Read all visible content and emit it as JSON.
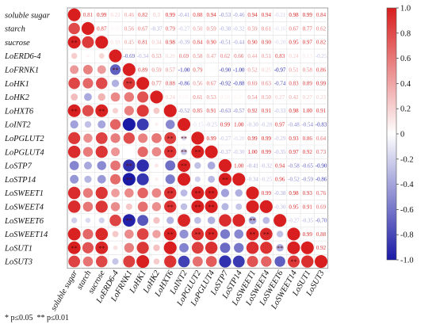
{
  "chart_data": {
    "type": "heatmap",
    "subtype": "correlation-matrix",
    "labels": [
      "soluble sugar",
      "starch",
      "sucrose",
      "LoERD6-4",
      "LoFRNK1",
      "LoHK1",
      "LoHK2",
      "LoHXT6",
      "LoINT2",
      "LoPGLUT2",
      "LoPGLUT4",
      "LoSTP7",
      "LoSTP14",
      "LoSWEET1",
      "LoSWEET4",
      "LoSWEET6",
      "LoSWEET14",
      "LoSUT1",
      "LoSUT3"
    ],
    "upper_values": [
      [
        "0.81",
        "0.99",
        "0.22",
        "0.46",
        "0.82",
        "0.3",
        "0.99",
        "-0.41",
        "0.88",
        "0.94",
        "-0.53",
        "-0.46",
        "0.94",
        "0.94",
        "-0.21",
        "0.98",
        "0.99",
        "0.84"
      ],
      [
        "0.87",
        "0.05",
        "0.56",
        "0.67",
        "-0.37",
        "0.79",
        "-0.27",
        "0.50",
        "0.59",
        "-0.38",
        "-0.32",
        "0.59",
        "0.61",
        "-0.16",
        "0.67",
        "0.77",
        "0.62"
      ],
      [
        "0.18",
        "0.45",
        "0.81",
        "0.34",
        "0.98",
        "-0.39",
        "0.84",
        "0.90",
        "-0.51",
        "-0.44",
        "0.90",
        "0.90",
        "-0.20",
        "0.95",
        "0.97",
        "0.82"
      ],
      [
        "-0.69",
        "-0.34",
        "0.53",
        "0.20",
        "0.69",
        "0.58",
        "0.47",
        "0.62",
        "0.66",
        "0.44",
        "0.51",
        "0.83",
        "0.24",
        "0.13",
        "-0.25"
      ],
      [
        "0.89",
        "0.59",
        "0.57",
        "-1.00",
        "0.79",
        "0.02",
        "-0.90",
        "-1.00",
        "0.52",
        "0.25",
        "-0.97",
        "0.51",
        "0.58",
        "0.86"
      ],
      [
        "0.77",
        "0.88",
        "-0.86",
        "0.56",
        "0.67",
        "-0.92",
        "-0.88",
        "0.69",
        "0.63",
        "-0.74",
        "0.83",
        "0.89",
        "0.99"
      ],
      [
        "0.24",
        "0.07",
        "0.61",
        "0.53",
        "0.10",
        "0.07",
        "0.54",
        "0.50",
        "0.27",
        "0.42",
        "0.27",
        "0.23"
      ],
      [
        "-0.52",
        "0.85",
        "0.91",
        "-0.63",
        "-0.57",
        "0.92",
        "0.91",
        "-0.33",
        "0.98",
        "1.00",
        "0.91"
      ],
      [
        "-0.15",
        "-0.25",
        "0.99",
        "1.00",
        "-0.30",
        "-0.28",
        "0.97",
        "-0.48",
        "-0.54",
        "-0.83"
      ],
      [
        "0.99",
        "-0.27",
        "-0.20",
        "0.99",
        "0.99",
        "-0.29",
        "0.93",
        "0.86",
        "0.64"
      ],
      [
        "-0.37",
        "-0.30",
        "1.00",
        "0.99",
        "-0.35",
        "0.97",
        "0.92",
        "0.73"
      ],
      [
        "1.00",
        "-0.41",
        "-0.32",
        "0.94",
        "-0.58",
        "-0.65",
        "-0.90"
      ],
      [
        "-0.34",
        "-0.25",
        "0.96",
        "-0.52",
        "-0.59",
        "-0.86"
      ],
      [
        "0.99",
        "-0.38",
        "0.98",
        "0.93",
        "0.76"
      ],
      [
        "-0.30",
        "0.95",
        "0.91",
        "0.69"
      ],
      [
        "-0.27",
        "-0.35",
        "-0.70"
      ],
      [
        "0.99",
        "0.88"
      ],
      [
        "0.92"
      ],
      []
    ],
    "significance": {
      "double_star": [
        [
          2,
          0
        ],
        [
          9,
          8
        ],
        [
          10,
          9
        ],
        [
          10,
          8
        ],
        [
          11,
          8
        ],
        [
          12,
          11
        ],
        [
          13,
          9
        ],
        [
          13,
          10
        ],
        [
          14,
          9
        ],
        [
          14,
          10
        ],
        [
          15,
          13
        ],
        [
          16,
          9
        ],
        [
          16,
          10
        ],
        [
          16,
          13
        ],
        [
          16,
          14
        ],
        [
          16,
          7
        ],
        [
          17,
          15
        ],
        [
          11,
          4
        ],
        [
          12,
          4
        ],
        [
          5,
          4
        ],
        [
          4,
          3
        ],
        [
          15,
          4
        ],
        [
          14,
          7
        ],
        [
          13,
          7
        ],
        [
          9,
          7
        ],
        [
          10,
          7
        ],
        [
          17,
          0
        ],
        [
          17,
          2
        ],
        [
          7,
          0
        ],
        [
          7,
          2
        ],
        [
          18,
          16
        ]
      ],
      "single_star": []
    },
    "colorbar": {
      "min": -1.0,
      "max": 1.0,
      "ticks": [
        "1.0",
        "0.8",
        "0.6",
        "0.4",
        "0.2",
        "0",
        "-0.2",
        "-0.4",
        "-0.6",
        "-0.8",
        "-1.0"
      ],
      "colors": {
        "positive": "#d81e1e",
        "neutral": "#ffffff",
        "negative": "#1a1aa6"
      }
    },
    "lower_triangle": "circles sized and colored by |r|",
    "upper_triangle": "numeric r values colored by sign"
  },
  "footnote": "* p≤0.05  ** p≤0.01"
}
